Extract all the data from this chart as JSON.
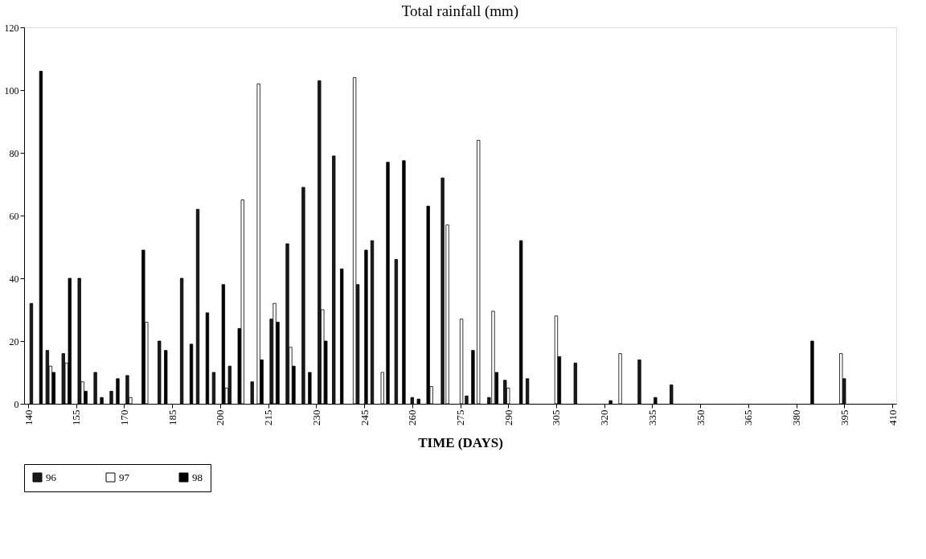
{
  "chart_data": {
    "type": "bar",
    "title": "Total rainfall (mm)",
    "xlabel": "TIME (DAYS)",
    "xlim": [
      140,
      410
    ],
    "xticks": [
      140,
      155,
      170,
      185,
      200,
      215,
      230,
      245,
      260,
      275,
      290,
      305,
      320,
      335,
      350,
      365,
      380,
      395,
      410
    ],
    "ylim": [
      0,
      120
    ],
    "yticks": [
      0,
      20,
      40,
      60,
      80,
      100,
      120
    ],
    "grid": false,
    "legend": "bottom",
    "series": [
      {
        "name": "96",
        "color": "#1a1a1a",
        "x": [
          141,
          146,
          151,
          156,
          161,
          166,
          171,
          181,
          188,
          193,
          198,
          203,
          210,
          216,
          221,
          226,
          231,
          235.5,
          243,
          247.5,
          255,
          260,
          269.5,
          277,
          284,
          289,
          296,
          311,
          331,
          341,
          395
        ],
        "values": [
          32,
          17,
          16,
          40,
          10,
          4,
          9,
          20,
          40,
          62,
          10,
          12,
          7,
          27,
          51,
          69,
          103,
          79,
          38,
          52,
          46,
          2,
          72,
          2.5,
          2,
          7.5,
          8,
          13,
          14,
          6,
          8
        ]
      },
      {
        "name": "97",
        "color": "#ffffff",
        "x": [
          147,
          152,
          157,
          172,
          177,
          202,
          207,
          212,
          217,
          222,
          232,
          242,
          250.7,
          266,
          271,
          275.4,
          280.7,
          285.3,
          290,
          305,
          325,
          394
        ],
        "values": [
          12,
          13,
          7,
          2,
          26,
          5,
          65,
          102,
          32,
          18,
          30,
          104,
          10,
          5.5,
          57,
          27,
          84,
          29.5,
          5,
          28,
          16,
          16
        ]
      },
      {
        "name": "98",
        "color": "#000000",
        "x": [
          144,
          148,
          153,
          158,
          163,
          168,
          176,
          183,
          191,
          196,
          201,
          206,
          213,
          218,
          223,
          228,
          233,
          238,
          245.6,
          252.4,
          257.4,
          262,
          265,
          279,
          286.4,
          294,
          306,
          322,
          336,
          385
        ],
        "values": [
          106,
          10,
          40,
          4,
          2,
          8,
          49,
          17,
          19,
          29,
          38,
          24,
          14,
          26,
          12,
          10,
          20,
          43,
          49,
          77,
          77.5,
          1.5,
          63,
          17,
          10,
          52,
          15,
          1,
          2,
          20
        ]
      }
    ]
  }
}
